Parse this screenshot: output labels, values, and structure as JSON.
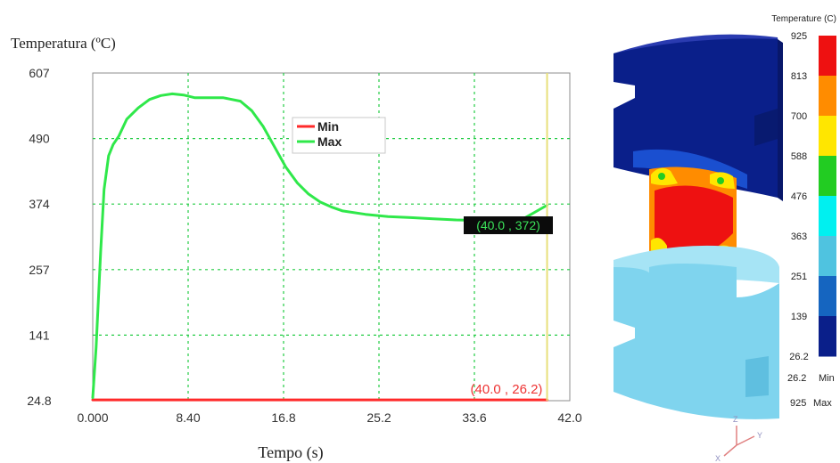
{
  "chart_data": {
    "type": "line",
    "ylabel": "Temperatura (ºC)",
    "xlabel": "Tempo (s)",
    "xlim": [
      0,
      42.0
    ],
    "ylim": [
      24.8,
      607
    ],
    "x_ticks": [
      "0.000",
      "8.40",
      "16.8",
      "25.2",
      "33.6",
      "42.0"
    ],
    "y_ticks": [
      "607",
      "490",
      "374",
      "257",
      "141",
      "24.8"
    ],
    "grid": true,
    "legend_position": "top-center",
    "series": [
      {
        "name": "Min",
        "color": "#ff2a2a",
        "x": [
          0,
          5,
          10,
          15,
          20,
          25,
          30,
          35,
          40
        ],
        "y": [
          26.2,
          26.2,
          26.2,
          26.2,
          26.2,
          26.2,
          26.2,
          26.2,
          26.2
        ]
      },
      {
        "name": "Max",
        "color": "#2fe84a",
        "x": [
          0,
          0.3,
          0.7,
          1.0,
          1.4,
          1.8,
          2.3,
          3.0,
          4.0,
          5.0,
          6.0,
          7.0,
          8.0,
          9.0,
          10.0,
          11.5,
          13.0,
          14.0,
          15.0,
          16.0,
          17.0,
          18.0,
          19.0,
          20.0,
          21.0,
          22.0,
          24.0,
          26.0,
          28.0,
          30.0,
          32.0,
          34.0,
          36.0,
          38.0,
          40.0
        ],
        "y": [
          30,
          120,
          290,
          400,
          460,
          480,
          495,
          525,
          545,
          560,
          567,
          570,
          568,
          563,
          563,
          563,
          557,
          540,
          512,
          476,
          440,
          412,
          392,
          378,
          369,
          362,
          356,
          352,
          350,
          348,
          346,
          345,
          346,
          349,
          372
        ]
      }
    ],
    "annotations": [
      {
        "text": "(40.0 , 372)",
        "x": 40.0,
        "y": 372,
        "style": "label-box"
      },
      {
        "text": "(40.0 , 26.2)",
        "x": 40.0,
        "y": 26.2,
        "style": "red-text"
      }
    ],
    "vertical_marker_x": 40.0
  },
  "colorbar": {
    "title": "Temperature (C)",
    "labels": [
      "925",
      "813",
      "700",
      "588",
      "476",
      "363",
      "251",
      "139",
      "26.2"
    ],
    "colors": [
      "#ee1111",
      "#ff8c00",
      "#ffe600",
      "#22cc22",
      "#00f0f0",
      "#4fc3e0",
      "#1565c0",
      "#0a1f8a"
    ],
    "min_value": "26.2",
    "min_label": "Min",
    "max_value": "925",
    "max_label": "Max"
  },
  "axes_triad": {
    "z": "Z",
    "y": "Y",
    "x": "X"
  },
  "specimen_colors": {
    "top_die": "#0a1f8a",
    "bottom_die": "#7fd4ee",
    "hot": "#ee1111",
    "warm": "#ff8c00"
  }
}
